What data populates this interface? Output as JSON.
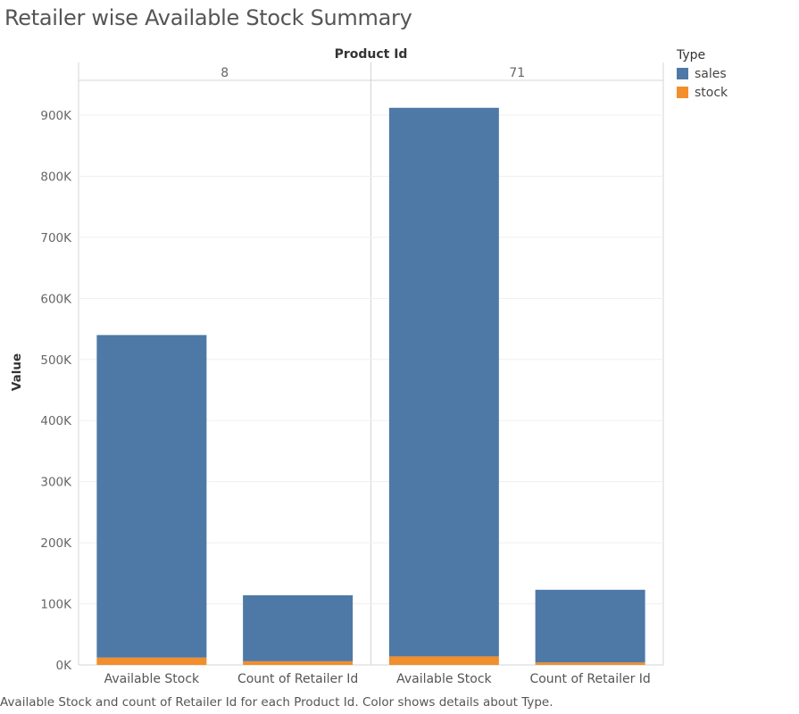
{
  "chart_data": {
    "type": "bar",
    "stacked": true,
    "title": "Retailer wise Available Stock Summary",
    "caption": "Available Stock and count of Retailer Id for each Product Id.  Color shows details about Type.",
    "column_header": "Product Id",
    "panels": [
      "8",
      "71"
    ],
    "categories": [
      "Available Stock",
      "Count of Retailer Id"
    ],
    "ylabel": "Value",
    "ylim": [
      0,
      950000
    ],
    "yticks": [
      0,
      100000,
      200000,
      300000,
      400000,
      500000,
      600000,
      700000,
      800000,
      900000
    ],
    "ytick_labels": [
      "0K",
      "100K",
      "200K",
      "300K",
      "400K",
      "500K",
      "600K",
      "700K",
      "800K",
      "900K"
    ],
    "legend": {
      "title": "Type",
      "position": "right"
    },
    "series": [
      {
        "name": "stock",
        "color": "#f28e2b",
        "values": [
          [
            12000,
            6000
          ],
          [
            14000,
            4000
          ]
        ]
      },
      {
        "name": "sales",
        "color": "#4e79a7",
        "values": [
          [
            528000,
            108000
          ],
          [
            898000,
            119000
          ]
        ]
      }
    ],
    "grid": true
  }
}
